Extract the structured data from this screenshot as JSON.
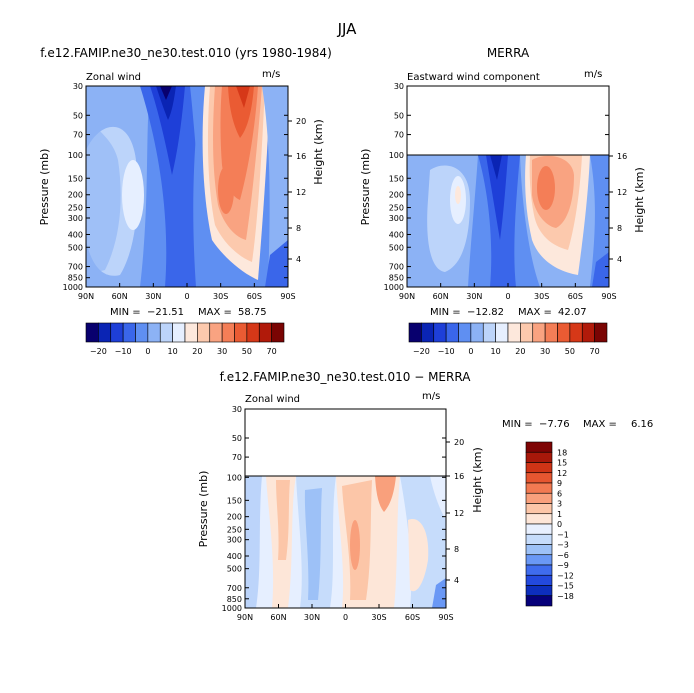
{
  "figure": {
    "title": "JJA"
  },
  "colors": {
    "levels_main": [
      "#08006e",
      "#0a24b4",
      "#1e3fd8",
      "#3a66ea",
      "#5f8ff2",
      "#8cb2f5",
      "#bcd4fa",
      "#e6efff",
      "#fde8dc",
      "#fcc9ad",
      "#f9a381",
      "#f47e57",
      "#ea5b33",
      "#d63818",
      "#b11a0a",
      "#7a0403"
    ],
    "levels_diff": [
      "#06007a",
      "#0d2ebd",
      "#2349de",
      "#3f6cee",
      "#6a98f5",
      "#9dc1f7",
      "#c6dcfb",
      "#e8f0ff",
      "#fde6d8",
      "#fcc6a8",
      "#f9a07c",
      "#f27a52",
      "#e65630",
      "#cf3416",
      "#a8180a",
      "#7e0404"
    ]
  },
  "chart_data": [
    {
      "type": "heatmap",
      "panel": "model",
      "title": "f.e12.FAMIP.ne30_ne30.test.010 (yrs 1980-1984)",
      "subtitle_left": "Zonal wind",
      "subtitle_right": "m/s",
      "ylabel": "Pressure (mb)",
      "ylabel_right": "Height (km)",
      "x_ticks": [
        "90N",
        "60N",
        "30N",
        "0",
        "30S",
        "60S",
        "90S"
      ],
      "y_ticks": [
        "30",
        "50",
        "70",
        "100",
        "150",
        "200",
        "250",
        "300",
        "400",
        "500",
        "700",
        "850",
        "1000"
      ],
      "y_right_ticks": [
        "20",
        "16",
        "12",
        "8",
        "4"
      ],
      "stats": {
        "min_label": "MIN =",
        "min": "−21.51",
        "max_label": "MAX =",
        "max": "58.75"
      },
      "colorbar_labels": [
        "−20",
        "−10",
        "0",
        "10",
        "20",
        "30",
        "50",
        "70"
      ],
      "data_top_pressure": 30
    },
    {
      "type": "heatmap",
      "panel": "obs",
      "title": "MERRA",
      "subtitle_left": "Eastward wind component",
      "subtitle_right": "m/s",
      "ylabel": "Pressure (mb)",
      "ylabel_right": "Height (km)",
      "x_ticks": [
        "90N",
        "60N",
        "30N",
        "0",
        "30S",
        "60S",
        "90S"
      ],
      "y_ticks": [
        "30",
        "50",
        "70",
        "100",
        "150",
        "200",
        "250",
        "300",
        "400",
        "500",
        "700",
        "850",
        "1000"
      ],
      "y_right_ticks": [
        "16",
        "12",
        "8",
        "4"
      ],
      "stats": {
        "min_label": "MIN =",
        "min": "−12.82",
        "max_label": "MAX =",
        "max": "42.07"
      },
      "colorbar_labels": [
        "−20",
        "−10",
        "0",
        "10",
        "20",
        "30",
        "50",
        "70"
      ],
      "data_top_pressure": 100
    },
    {
      "type": "heatmap",
      "panel": "difference",
      "title": "f.e12.FAMIP.ne30_ne30.test.010 − MERRA",
      "subtitle_left": "Zonal wind",
      "subtitle_right": "m/s",
      "ylabel": "Pressure (mb)",
      "ylabel_right": "Height (km)",
      "x_ticks": [
        "90N",
        "60N",
        "30N",
        "0",
        "30S",
        "60S",
        "90S"
      ],
      "y_ticks": [
        "30",
        "50",
        "70",
        "100",
        "150",
        "200",
        "250",
        "300",
        "400",
        "500",
        "700",
        "850",
        "1000"
      ],
      "y_right_ticks": [
        "20",
        "16",
        "12",
        "8",
        "4"
      ],
      "stats": {
        "min_label": "MIN =",
        "min": "−7.76",
        "max_label": "MAX =",
        "max": "6.16"
      },
      "colorbar_labels": [
        "18",
        "15",
        "12",
        "9",
        "6",
        "3",
        "1",
        "0",
        "−1",
        "−3",
        "−6",
        "−9",
        "−12",
        "−15",
        "−18"
      ],
      "data_top_pressure": 100
    }
  ]
}
